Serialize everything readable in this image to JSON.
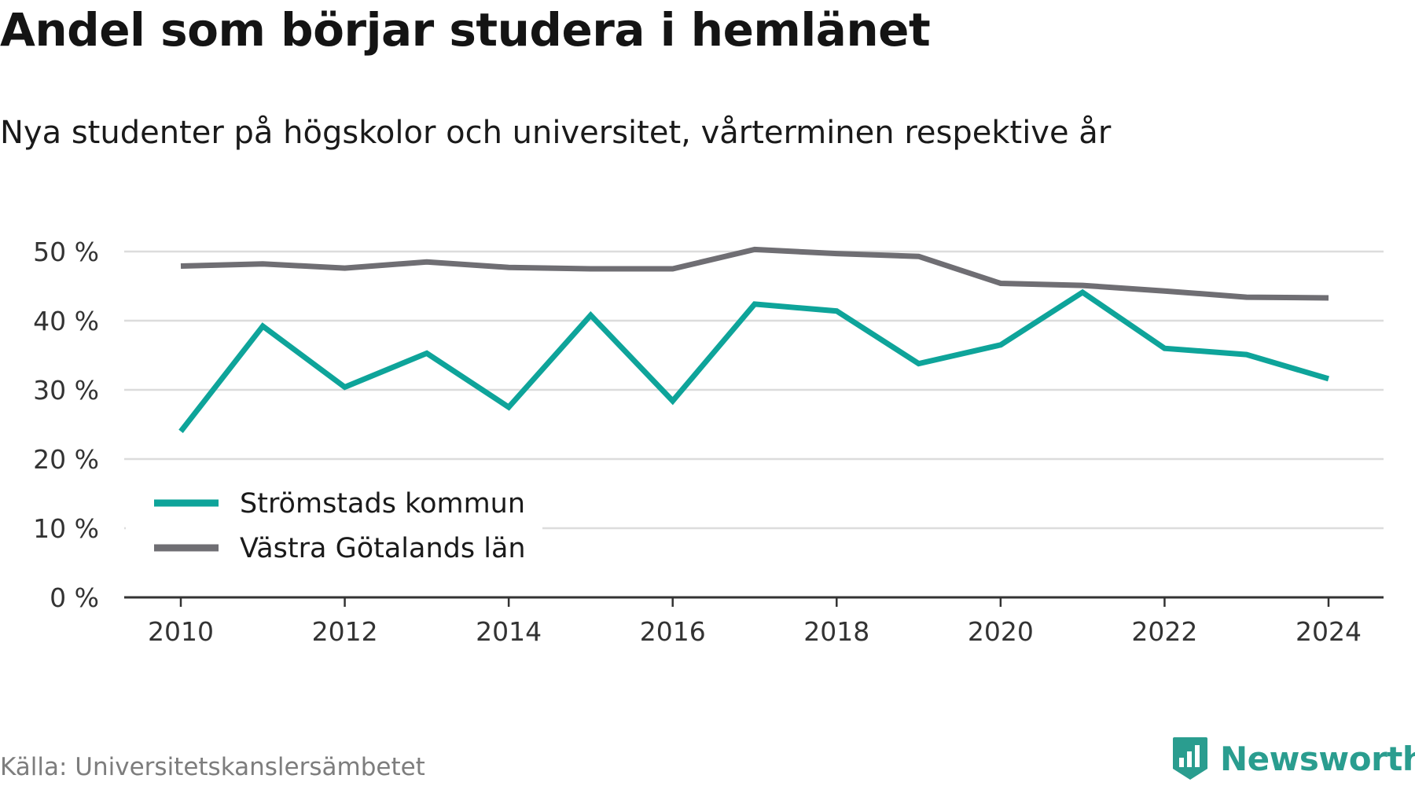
{
  "chart_data": {
    "type": "line",
    "title": "Andel som börjar studera i hemlänet",
    "subtitle": "Nya studenter på högskolor och universitet, vårterminen respektive år",
    "xlabel": "",
    "ylabel": "",
    "x": [
      2010,
      2011,
      2012,
      2013,
      2014,
      2015,
      2016,
      2017,
      2018,
      2019,
      2020,
      2021,
      2022,
      2023,
      2024
    ],
    "x_ticks": [
      "2010",
      "2012",
      "2014",
      "2016",
      "2018",
      "2020",
      "2022",
      "2024"
    ],
    "y_ticks": [
      "0 %",
      "10 %",
      "20 %",
      "30 %",
      "40 %",
      "50 %"
    ],
    "ylim": [
      0,
      50
    ],
    "grid": true,
    "legend_position": "bottom-left",
    "series": [
      {
        "name": "Strömstads kommun",
        "color": "#0ea49a",
        "values": [
          24.0,
          39.2,
          30.4,
          35.3,
          27.5,
          40.8,
          28.4,
          42.4,
          41.4,
          33.8,
          36.5,
          44.1,
          36.0,
          35.1,
          31.6
        ]
      },
      {
        "name": "Västra Götalands län",
        "color": "#6f6e73",
        "values": [
          47.9,
          48.2,
          47.6,
          48.5,
          47.7,
          47.5,
          47.5,
          50.3,
          49.7,
          49.3,
          45.4,
          45.1,
          44.3,
          43.4,
          43.3
        ]
      }
    ]
  },
  "source": "Källa: Universitetskanslersämbetet",
  "brand": {
    "name": "Newsworthy",
    "icon": "newsworthy-logo-icon",
    "color": "#2a9d8f"
  }
}
